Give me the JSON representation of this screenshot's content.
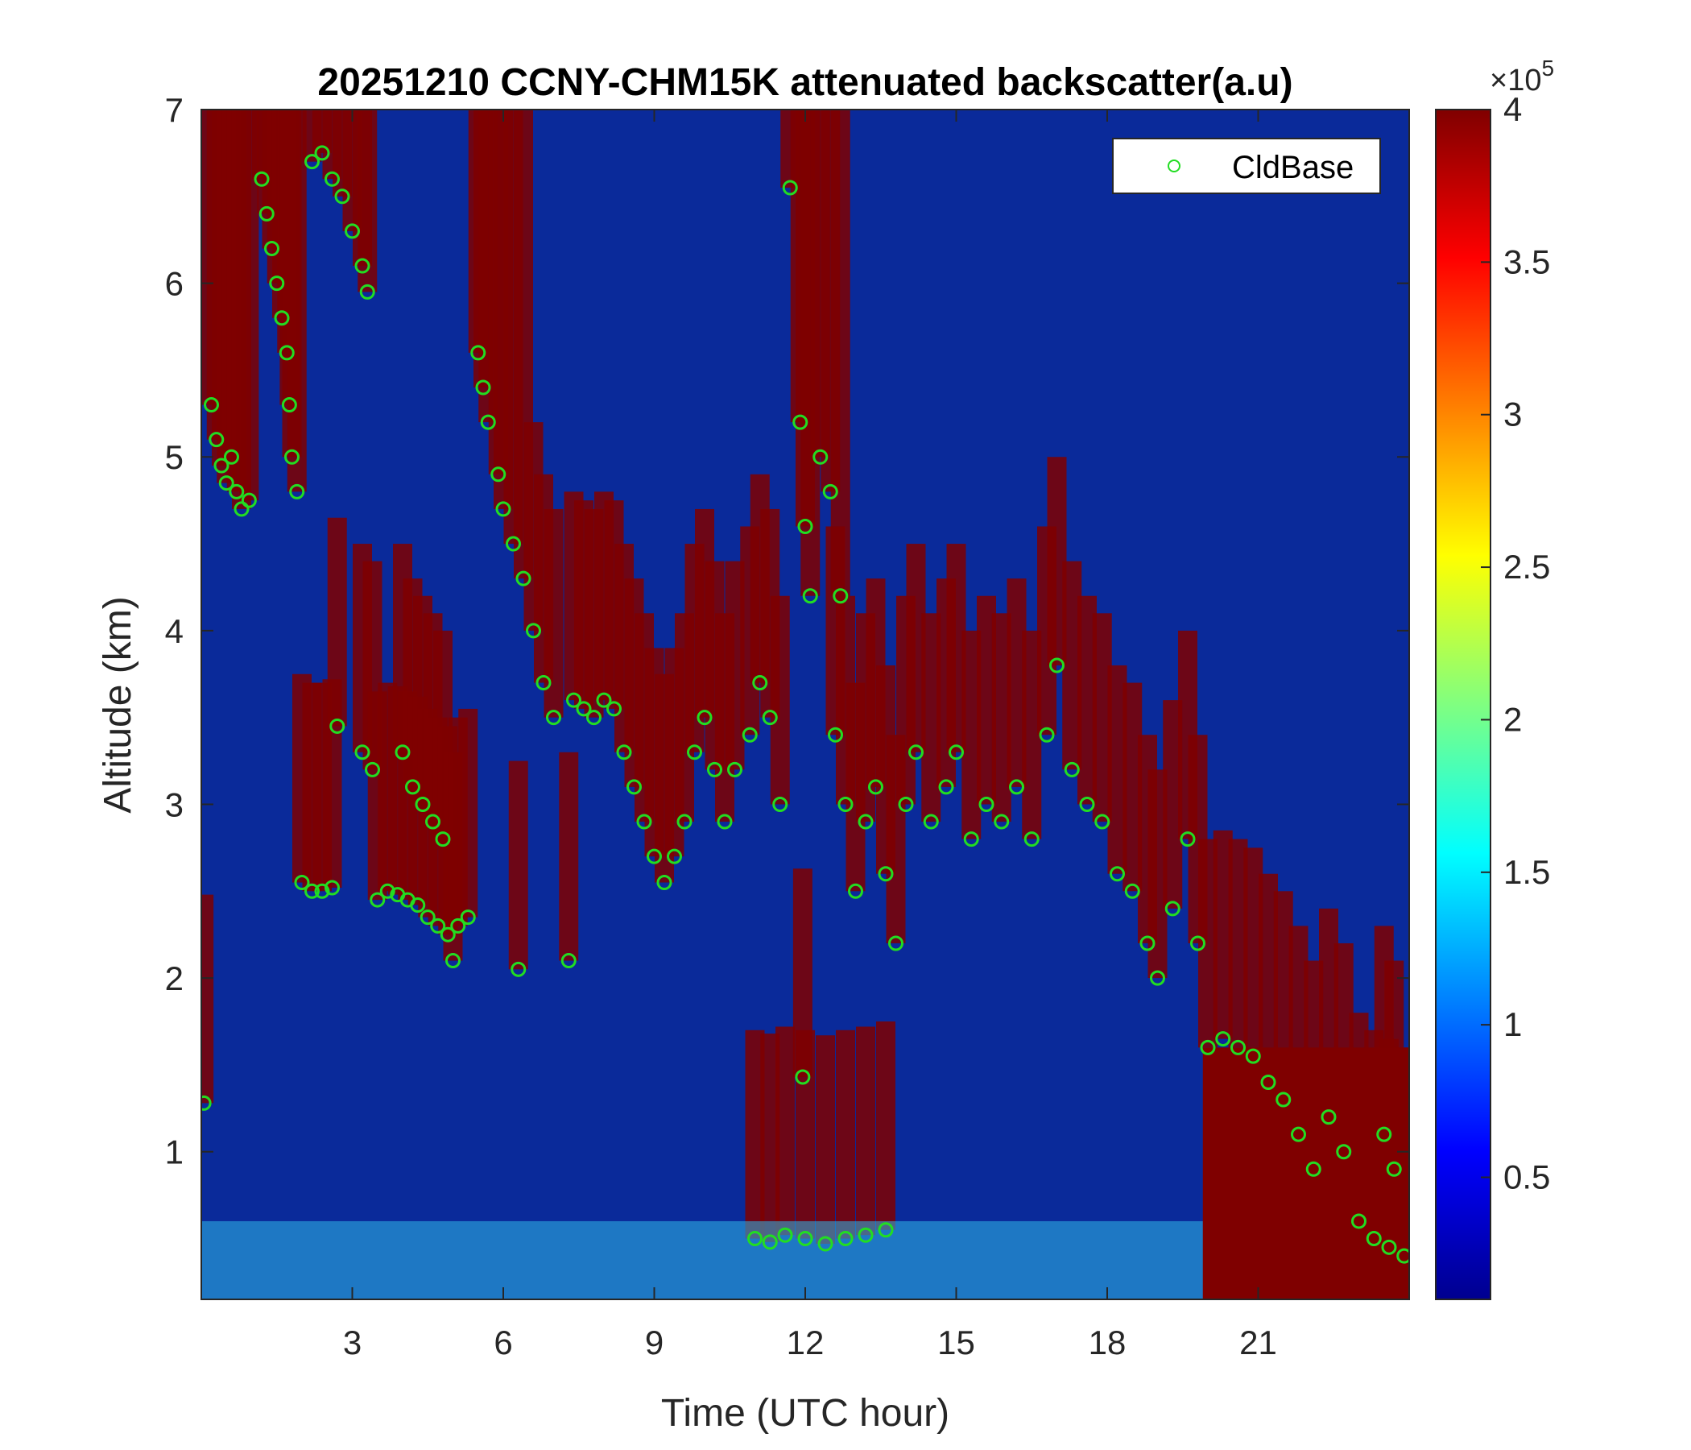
{
  "chart_data": {
    "type": "heatmap",
    "title": "20251210 CCNY-CHM15K attenuated backscatter(a.u)",
    "xlabel": "Time (UTC hour)",
    "ylabel": "Altitude (km)",
    "xlim": [
      0,
      24
    ],
    "ylim": [
      0.15,
      7
    ],
    "xticks": [
      "3",
      "6",
      "9",
      "12",
      "15",
      "18",
      "21"
    ],
    "yticks": [
      "1",
      "2",
      "3",
      "4",
      "5",
      "6",
      "7"
    ],
    "colorbar": {
      "colormap": "jet",
      "range": [
        0.1,
        4
      ],
      "ticks": [
        "0.5",
        "1",
        "1.5",
        "2",
        "2.5",
        "3",
        "3.5",
        "4"
      ],
      "multiplier": "×10",
      "exponent": "5"
    },
    "legend": {
      "entries": [
        "CldBase"
      ],
      "position": "top-right"
    },
    "colors": {
      "marker": "#22dd22",
      "background_field": "#0a2a9a",
      "cloud": "#7f0000"
    },
    "series": [
      {
        "name": "CldBase",
        "marker": "circle",
        "points": [
          [
            0.05,
            1.28
          ],
          [
            0.2,
            5.3
          ],
          [
            0.3,
            5.1
          ],
          [
            0.4,
            4.95
          ],
          [
            0.5,
            4.85
          ],
          [
            0.6,
            5.0
          ],
          [
            0.7,
            4.8
          ],
          [
            0.8,
            4.7
          ],
          [
            0.95,
            4.75
          ],
          [
            1.2,
            6.6
          ],
          [
            1.3,
            6.4
          ],
          [
            1.4,
            6.2
          ],
          [
            1.5,
            6.0
          ],
          [
            1.6,
            5.8
          ],
          [
            1.7,
            5.6
          ],
          [
            1.75,
            5.3
          ],
          [
            1.8,
            5.0
          ],
          [
            1.9,
            4.8
          ],
          [
            2.2,
            6.7
          ],
          [
            2.4,
            6.75
          ],
          [
            2.6,
            6.6
          ],
          [
            2.8,
            6.5
          ],
          [
            3.0,
            6.3
          ],
          [
            3.2,
            6.1
          ],
          [
            3.3,
            5.95
          ],
          [
            2.0,
            2.55
          ],
          [
            2.2,
            2.5
          ],
          [
            2.4,
            2.5
          ],
          [
            2.6,
            2.52
          ],
          [
            2.7,
            3.45
          ],
          [
            3.2,
            3.3
          ],
          [
            3.4,
            3.2
          ],
          [
            3.5,
            2.45
          ],
          [
            3.7,
            2.5
          ],
          [
            3.9,
            2.48
          ],
          [
            4.1,
            2.45
          ],
          [
            4.3,
            2.42
          ],
          [
            4.5,
            2.35
          ],
          [
            4.7,
            2.3
          ],
          [
            4.9,
            2.25
          ],
          [
            5.1,
            2.3
          ],
          [
            5.3,
            2.35
          ],
          [
            4.0,
            3.3
          ],
          [
            4.2,
            3.1
          ],
          [
            4.4,
            3.0
          ],
          [
            4.6,
            2.9
          ],
          [
            4.8,
            2.8
          ],
          [
            5.0,
            2.1
          ],
          [
            6.3,
            2.05
          ],
          [
            7.3,
            2.1
          ],
          [
            5.5,
            5.6
          ],
          [
            5.6,
            5.4
          ],
          [
            5.7,
            5.2
          ],
          [
            5.9,
            4.9
          ],
          [
            6.0,
            4.7
          ],
          [
            6.2,
            4.5
          ],
          [
            6.4,
            4.3
          ],
          [
            6.6,
            4.0
          ],
          [
            6.8,
            3.7
          ],
          [
            7.0,
            3.5
          ],
          [
            7.4,
            3.6
          ],
          [
            7.6,
            3.55
          ],
          [
            7.8,
            3.5
          ],
          [
            8.0,
            3.6
          ],
          [
            8.2,
            3.55
          ],
          [
            8.4,
            3.3
          ],
          [
            8.6,
            3.1
          ],
          [
            8.8,
            2.9
          ],
          [
            9.0,
            2.7
          ],
          [
            9.2,
            2.55
          ],
          [
            9.4,
            2.7
          ],
          [
            9.6,
            2.9
          ],
          [
            9.8,
            3.3
          ],
          [
            10.0,
            3.5
          ],
          [
            10.2,
            3.2
          ],
          [
            10.4,
            2.9
          ],
          [
            10.6,
            3.2
          ],
          [
            10.9,
            3.4
          ],
          [
            11.1,
            3.7
          ],
          [
            11.3,
            3.5
          ],
          [
            11.5,
            3.0
          ],
          [
            11.7,
            6.55
          ],
          [
            11.9,
            5.2
          ],
          [
            12.0,
            4.6
          ],
          [
            12.1,
            4.2
          ],
          [
            12.3,
            5.0
          ],
          [
            12.5,
            4.8
          ],
          [
            12.7,
            4.2
          ],
          [
            12.6,
            3.4
          ],
          [
            12.8,
            3.0
          ],
          [
            13.0,
            2.5
          ],
          [
            13.2,
            2.9
          ],
          [
            13.4,
            3.1
          ],
          [
            13.6,
            2.6
          ],
          [
            13.8,
            2.2
          ],
          [
            14.0,
            3.0
          ],
          [
            14.2,
            3.3
          ],
          [
            14.5,
            2.9
          ],
          [
            14.8,
            3.1
          ],
          [
            15.0,
            3.3
          ],
          [
            15.3,
            2.8
          ],
          [
            15.6,
            3.0
          ],
          [
            15.9,
            2.9
          ],
          [
            16.2,
            3.1
          ],
          [
            16.5,
            2.8
          ],
          [
            16.8,
            3.4
          ],
          [
            17.0,
            3.8
          ],
          [
            17.3,
            3.2
          ],
          [
            17.6,
            3.0
          ],
          [
            17.9,
            2.9
          ],
          [
            18.2,
            2.6
          ],
          [
            18.5,
            2.5
          ],
          [
            18.8,
            2.2
          ],
          [
            19.0,
            2.0
          ],
          [
            19.3,
            2.4
          ],
          [
            19.6,
            2.8
          ],
          [
            19.8,
            2.2
          ],
          [
            20.0,
            1.6
          ],
          [
            20.3,
            1.65
          ],
          [
            20.6,
            1.6
          ],
          [
            20.9,
            1.55
          ],
          [
            21.2,
            1.4
          ],
          [
            21.5,
            1.3
          ],
          [
            21.8,
            1.1
          ],
          [
            22.1,
            0.9
          ],
          [
            22.4,
            1.2
          ],
          [
            22.7,
            1.0
          ],
          [
            23.0,
            0.6
          ],
          [
            23.3,
            0.5
          ],
          [
            23.6,
            0.45
          ],
          [
            23.9,
            0.4
          ],
          [
            23.7,
            0.9
          ],
          [
            23.5,
            1.1
          ],
          [
            11.0,
            0.5
          ],
          [
            11.3,
            0.48
          ],
          [
            11.6,
            0.52
          ],
          [
            12.0,
            0.5
          ],
          [
            12.4,
            0.47
          ],
          [
            12.8,
            0.5
          ],
          [
            13.2,
            0.52
          ],
          [
            13.6,
            0.55
          ],
          [
            11.95,
            1.43
          ]
        ]
      }
    ]
  }
}
